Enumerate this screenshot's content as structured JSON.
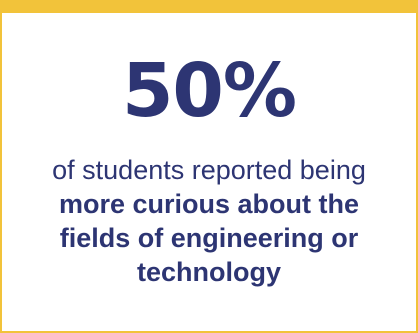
{
  "stat": {
    "value": "50%"
  },
  "caption": {
    "intro": "of students reported being",
    "emphasis": "more curious about the fields of engineering or technology"
  },
  "colors": {
    "text": "#2d3573",
    "accent_border": "#f2c33a",
    "background": "#ffffff"
  }
}
